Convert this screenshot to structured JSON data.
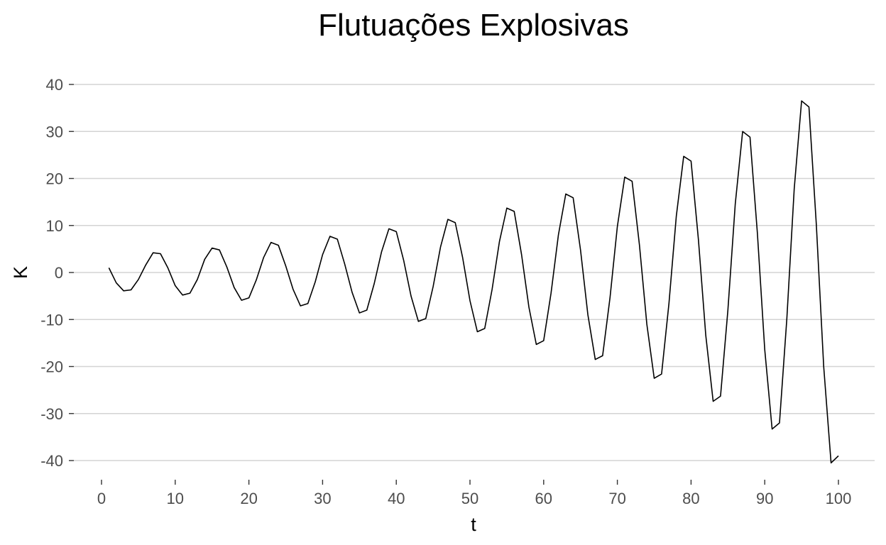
{
  "chart_data": {
    "type": "line",
    "title": "Flutuações Explosivas",
    "xlabel": "t",
    "ylabel": "K",
    "xlim": [
      0,
      100
    ],
    "ylim": [
      -40,
      40
    ],
    "x_ticks": [
      0,
      10,
      20,
      30,
      40,
      50,
      60,
      70,
      80,
      90,
      100
    ],
    "y_ticks": [
      -40,
      -30,
      -20,
      -10,
      0,
      10,
      20,
      30,
      40
    ],
    "grid": "horizontal major",
    "legend": "none",
    "line_color": "#000000",
    "series": [
      {
        "x": [
          1,
          2,
          3,
          4,
          5,
          6,
          7,
          8,
          9,
          10,
          11,
          12,
          13,
          14,
          15,
          16,
          17,
          18,
          19,
          20,
          21,
          22,
          23,
          24,
          25,
          26,
          27,
          28,
          29,
          30,
          31,
          32,
          33,
          34,
          35,
          36,
          37,
          38,
          39,
          40,
          41,
          42,
          43,
          44,
          45,
          46,
          47,
          48,
          49,
          50,
          51,
          52,
          53,
          54,
          55,
          56,
          57,
          58,
          59,
          60,
          61,
          62,
          63,
          64,
          65,
          66,
          67,
          68,
          69,
          70,
          71,
          72,
          73,
          74,
          75,
          76,
          77,
          78,
          79,
          80,
          81,
          82,
          83,
          84,
          85,
          86,
          87,
          88,
          89,
          90,
          91,
          92,
          93,
          94,
          95,
          96,
          97,
          98,
          99,
          100
        ],
        "y": [
          1.0,
          -2.2,
          -3.9,
          -3.7,
          -1.5,
          1.6,
          4.2,
          4.0,
          1.0,
          -2.8,
          -4.8,
          -4.4,
          -1.5,
          2.8,
          5.2,
          4.8,
          1.2,
          -3.2,
          -5.9,
          -5.4,
          -1.6,
          3.2,
          6.4,
          5.8,
          1.4,
          -3.6,
          -7.1,
          -6.6,
          -2.0,
          3.8,
          7.7,
          7.1,
          1.8,
          -4.2,
          -8.6,
          -8.0,
          -2.4,
          4.4,
          9.3,
          8.7,
          2.6,
          -5.0,
          -10.4,
          -9.8,
          -3.0,
          5.4,
          11.3,
          10.6,
          3.2,
          -6.0,
          -12.6,
          -11.9,
          -3.6,
          6.6,
          13.7,
          13.0,
          3.8,
          -7.4,
          -15.3,
          -14.5,
          -4.4,
          8.0,
          16.7,
          15.9,
          4.8,
          -9.0,
          -18.5,
          -17.7,
          -5.4,
          9.8,
          20.3,
          19.4,
          5.8,
          -11.0,
          -22.5,
          -21.6,
          -6.6,
          12.0,
          24.7,
          23.7,
          7.0,
          -13.4,
          -27.4,
          -26.3,
          -8.0,
          14.6,
          30.0,
          28.8,
          8.4,
          -16.4,
          -33.3,
          -32.0,
          -9.8,
          17.8,
          36.5,
          35.2,
          10.2,
          -20.0,
          -40.5,
          -39.0
        ]
      }
    ]
  }
}
